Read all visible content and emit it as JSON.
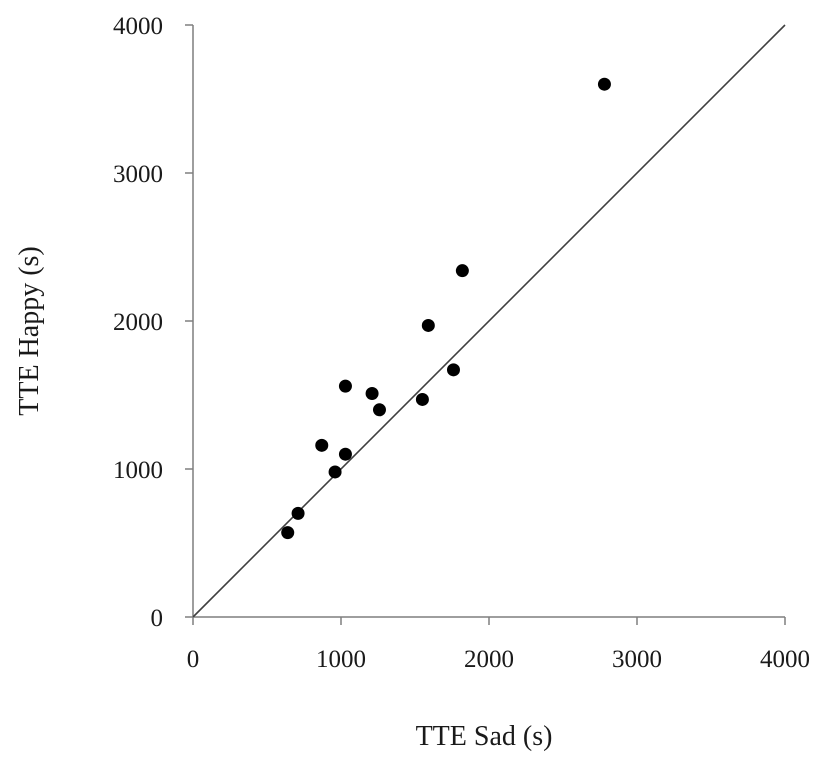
{
  "chart_data": {
    "type": "scatter",
    "title": "",
    "xlabel": "TTE Sad (s)",
    "ylabel": "TTE Happy (s)",
    "xlim": [
      0,
      4000
    ],
    "ylim": [
      0,
      4000
    ],
    "xticks": [
      0,
      1000,
      2000,
      3000,
      4000
    ],
    "yticks": [
      0,
      1000,
      2000,
      3000,
      4000
    ],
    "grid": false,
    "legend": "none",
    "reference_line": {
      "x": [
        0,
        4000
      ],
      "y": [
        0,
        4000
      ]
    },
    "points": [
      {
        "x": 640,
        "y": 570
      },
      {
        "x": 710,
        "y": 700
      },
      {
        "x": 870,
        "y": 1160
      },
      {
        "x": 960,
        "y": 980
      },
      {
        "x": 1030,
        "y": 1100
      },
      {
        "x": 1030,
        "y": 1560
      },
      {
        "x": 1210,
        "y": 1510
      },
      {
        "x": 1260,
        "y": 1400
      },
      {
        "x": 1550,
        "y": 1470
      },
      {
        "x": 1590,
        "y": 1970
      },
      {
        "x": 1760,
        "y": 1670
      },
      {
        "x": 1820,
        "y": 2340
      },
      {
        "x": 2780,
        "y": 3600
      }
    ],
    "colors": {
      "marker": "#000000",
      "axis": "#7f7f7f",
      "line": "#404040"
    }
  }
}
